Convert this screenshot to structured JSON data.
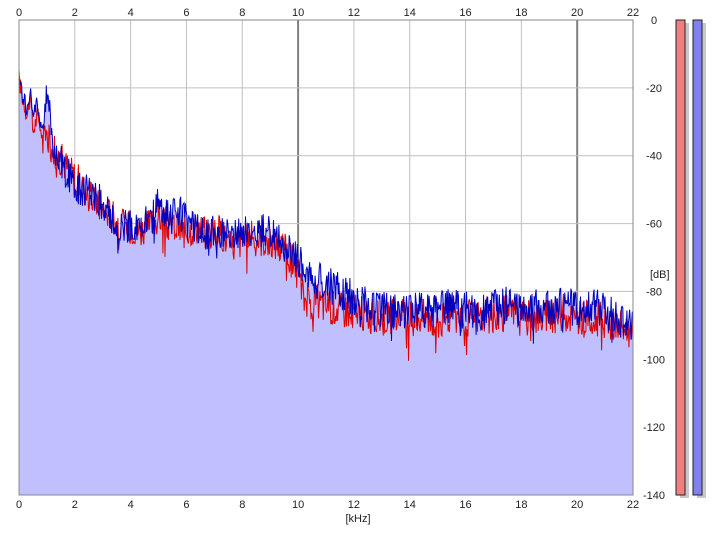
{
  "chart_data": {
    "type": "area",
    "title": "",
    "xlabel": "[kHz]",
    "ylabel": "[dB]",
    "xlim": [
      0,
      22
    ],
    "ylim": [
      -140,
      0
    ],
    "x_ticks": [
      0,
      2,
      4,
      6,
      8,
      10,
      12,
      14,
      16,
      18,
      20,
      22
    ],
    "y_ticks": [
      0,
      -20,
      -40,
      -60,
      -80,
      -100,
      -120,
      -140
    ],
    "x_tick_labels": [
      "0",
      "2",
      "4",
      "6",
      "8",
      "10",
      "12",
      "14",
      "16",
      "18",
      "20",
      "22"
    ],
    "y_tick_labels": [
      "0",
      "-20",
      "-40",
      "-60",
      "-80",
      "-100",
      "-120",
      "-140"
    ],
    "grid": true,
    "series": [
      {
        "color": "#e00000",
        "x": [
          0,
          0.1,
          0.2,
          0.3,
          0.4,
          0.5,
          0.6,
          0.7,
          0.8,
          0.9,
          1.0,
          1.2,
          1.4,
          1.6,
          1.8,
          2.0,
          2.2,
          2.5,
          2.8,
          3.0,
          3.3,
          3.6,
          4.0,
          4.4,
          4.8,
          5.0,
          5.3,
          5.6,
          6.0,
          6.4,
          6.8,
          7.2,
          7.6,
          8.0,
          8.4,
          8.8,
          9.2,
          9.6,
          10.0,
          10.2,
          10.5,
          11.0,
          11.5,
          12.0,
          12.5,
          13.0,
          13.5,
          14.0,
          14.5,
          15.0,
          15.5,
          16.0,
          16.5,
          17.0,
          17.5,
          18.0,
          18.5,
          19.0,
          19.5,
          20.0,
          20.5,
          21.0,
          21.5,
          22.0
        ],
        "values": [
          -18,
          -22,
          -25,
          -28,
          -22,
          -33,
          -30,
          -27,
          -35,
          -32,
          -34,
          -38,
          -40,
          -42,
          -44,
          -46,
          -48,
          -52,
          -54,
          -56,
          -57,
          -60,
          -61,
          -62,
          -60,
          -58,
          -60,
          -61,
          -62,
          -61,
          -63,
          -62,
          -67,
          -65,
          -64,
          -65,
          -66,
          -68,
          -75,
          -82,
          -83,
          -84,
          -85,
          -86,
          -87,
          -88,
          -87,
          -88,
          -87,
          -89,
          -87,
          -88,
          -87,
          -88,
          -86,
          -88,
          -87,
          -88,
          -86,
          -88,
          -87,
          -89,
          -90,
          -92
        ]
      },
      {
        "color": "#0000c0",
        "x": [
          0,
          0.1,
          0.2,
          0.3,
          0.4,
          0.5,
          0.6,
          0.7,
          0.8,
          0.9,
          1.0,
          1.2,
          1.4,
          1.6,
          1.8,
          2.0,
          2.2,
          2.5,
          2.8,
          3.0,
          3.3,
          3.6,
          4.0,
          4.4,
          4.8,
          5.0,
          5.3,
          5.6,
          6.0,
          6.4,
          6.8,
          7.2,
          7.6,
          8.0,
          8.4,
          8.8,
          9.2,
          9.6,
          10.0,
          10.2,
          10.5,
          11.0,
          11.5,
          12.0,
          12.5,
          13.0,
          13.5,
          14.0,
          14.5,
          15.0,
          15.5,
          16.0,
          16.5,
          17.0,
          17.5,
          18.0,
          18.5,
          19.0,
          19.5,
          20.0,
          20.5,
          21.0,
          21.5,
          22.0
        ],
        "values": [
          -17,
          -21,
          -24,
          -27,
          -21,
          -30,
          -24,
          -26,
          -34,
          -30,
          -20,
          -36,
          -39,
          -44,
          -46,
          -48,
          -50,
          -50,
          -52,
          -55,
          -58,
          -60,
          -61,
          -61,
          -58,
          -52,
          -58,
          -56,
          -58,
          -62,
          -63,
          -62,
          -64,
          -62,
          -63,
          -62,
          -64,
          -67,
          -70,
          -74,
          -76,
          -78,
          -80,
          -82,
          -84,
          -85,
          -86,
          -85,
          -86,
          -85,
          -84,
          -85,
          -86,
          -85,
          -84,
          -85,
          -84,
          -85,
          -84,
          -85,
          -84,
          -86,
          -88,
          -91
        ]
      }
    ],
    "legend": "none"
  },
  "meters": {
    "left_color": "#f08080",
    "right_color": "#8080f0",
    "level": 0
  }
}
